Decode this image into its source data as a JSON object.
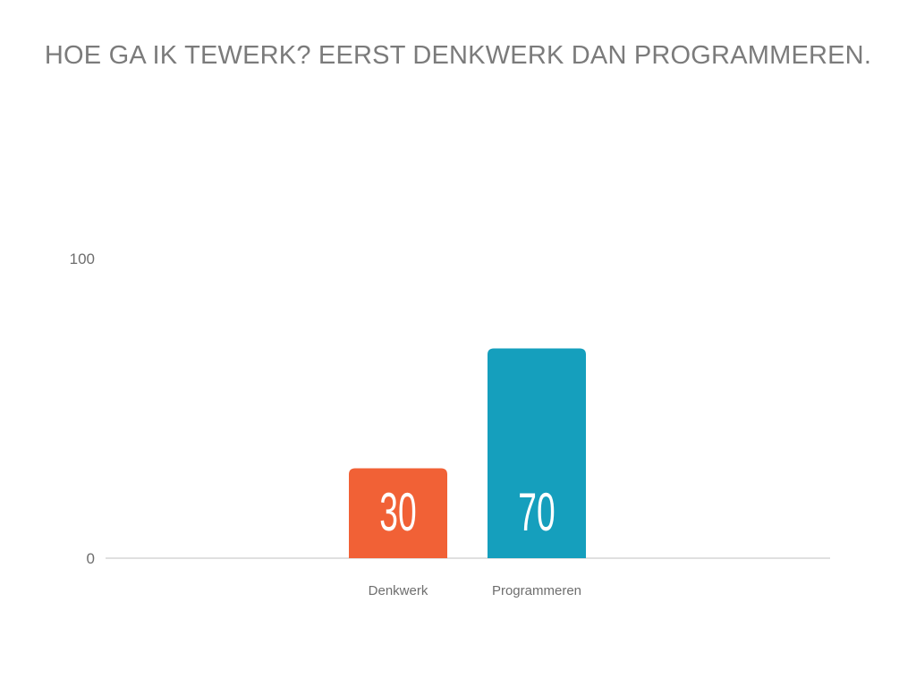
{
  "title": "HOE GA IK TEWERK? EERST DENKWERK DAN PROGRAMMEREN.",
  "chart_data": {
    "type": "bar",
    "categories": [
      "Denkwerk",
      "Programmeren"
    ],
    "values": [
      30,
      70
    ],
    "bar_colors": [
      "#f16136",
      "#159fbd"
    ],
    "ylim": [
      0,
      100
    ],
    "y_ticks": [
      "0",
      "100"
    ],
    "xlabel": "",
    "ylabel": "",
    "grid": false,
    "legend": "none"
  }
}
